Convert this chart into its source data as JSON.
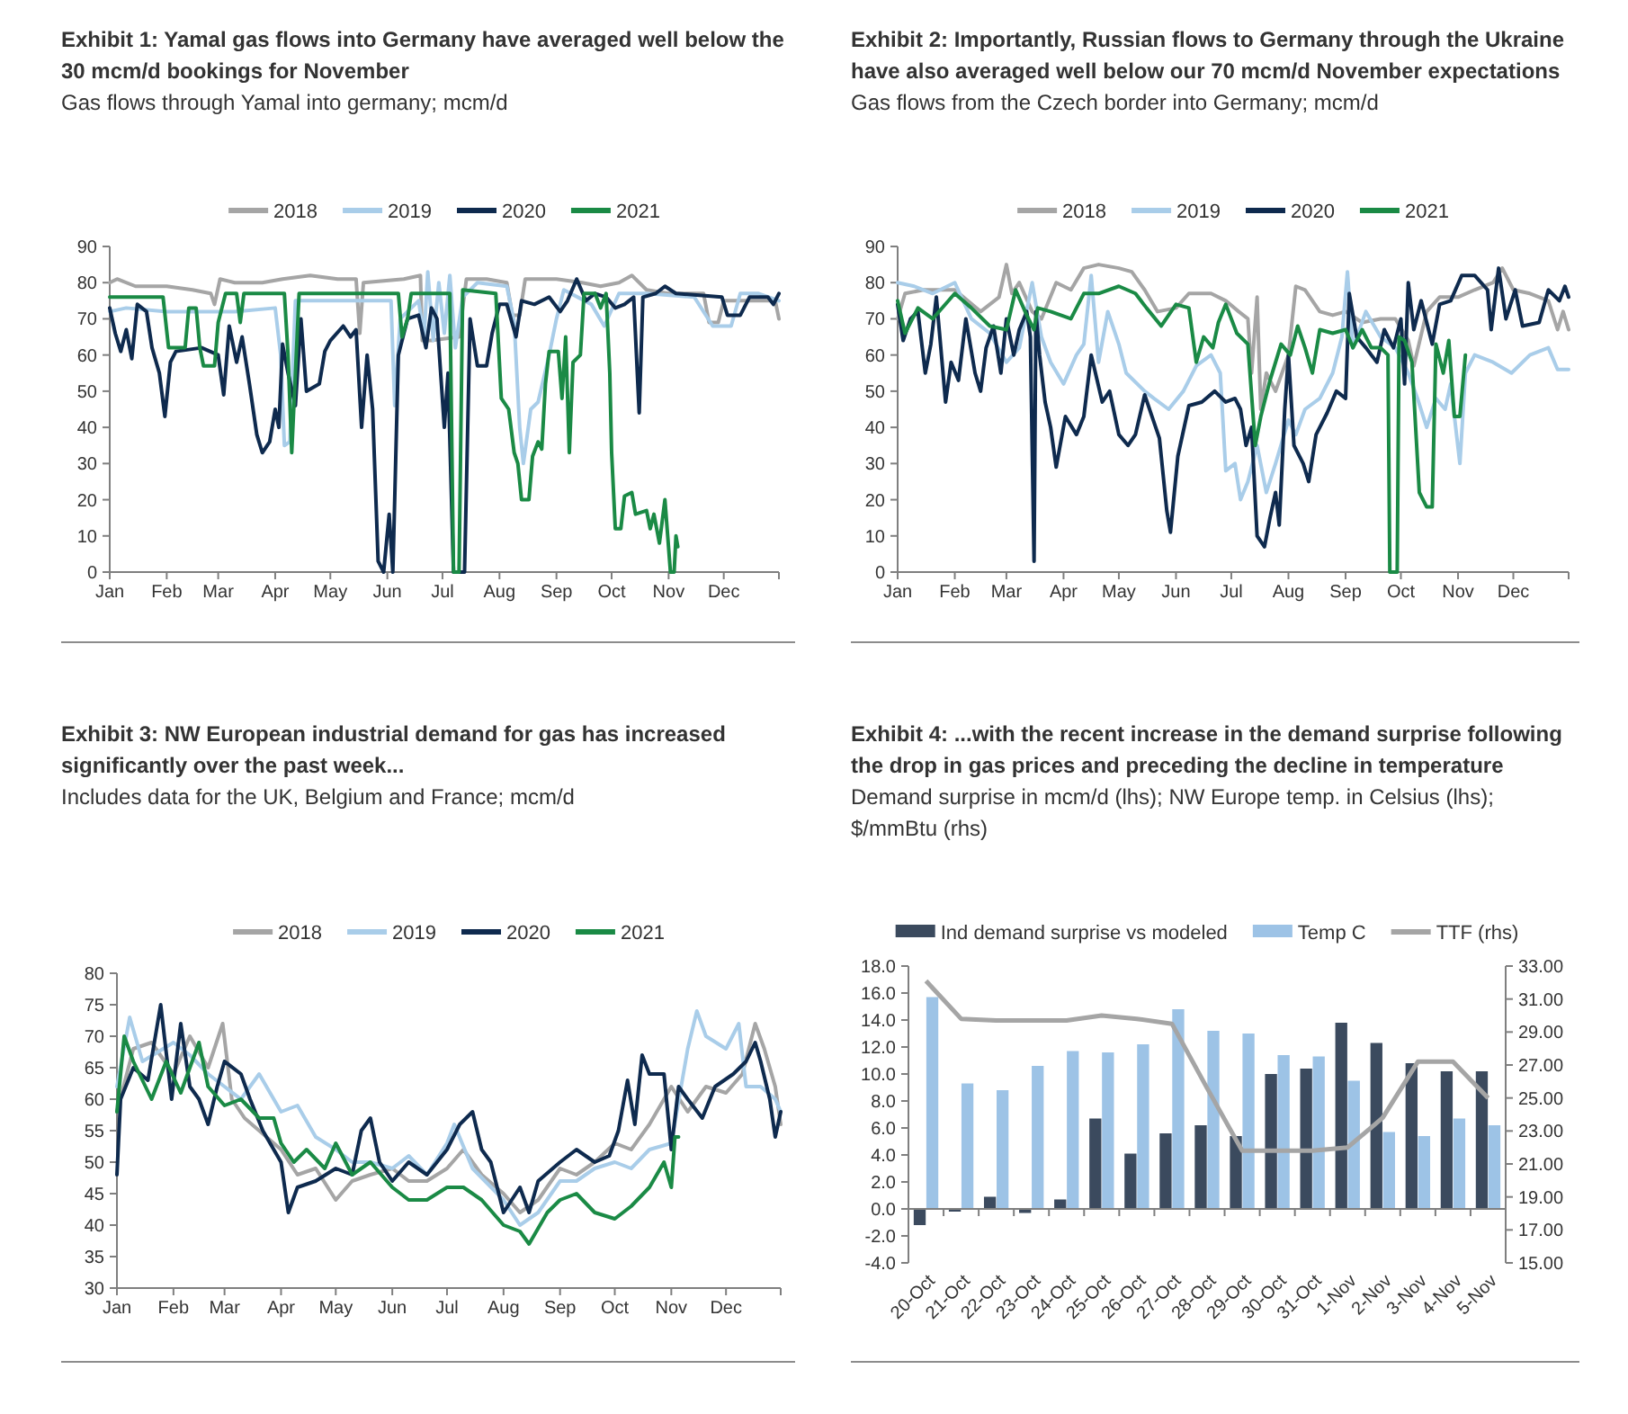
{
  "chart_data": [
    {
      "type": "line",
      "title": "Exhibit 1: Yamal gas flows into Germany have averaged well below the 30 mcm/d bookings for November",
      "subtitle": "Gas flows through Yamal into germany; mcm/d",
      "xlim": [
        "--01-01",
        "--12-31"
      ],
      "xticks": [
        {
          "value": "--01-01",
          "label": "Jan"
        },
        {
          "value": "--02-01",
          "label": "Feb"
        },
        {
          "value": "--03-01",
          "label": "Mar"
        },
        {
          "value": "--04-01",
          "label": "Apr"
        },
        {
          "value": "--05-01",
          "label": "May"
        },
        {
          "value": "--06-01",
          "label": "Jun"
        },
        {
          "value": "--07-01",
          "label": "Jul"
        },
        {
          "value": "--08-01",
          "label": "Aug"
        },
        {
          "value": "--09-01",
          "label": "Sep"
        },
        {
          "value": "--10-01",
          "label": "Oct"
        },
        {
          "value": "--11-01",
          "label": "Nov"
        },
        {
          "value": "--12-01",
          "label": "Dec"
        },
        {
          "value": "--12-31",
          "label": null
        }
      ],
      "ylim": [
        0,
        90
      ],
      "yticks": [
        0,
        10,
        20,
        30,
        40,
        50,
        60,
        70,
        80,
        90
      ],
      "legend": "top",
      "series": [
        {
          "name": "2018",
          "color": "#a5a5a5",
          "x": [
            "--01-01",
            "--01-05",
            "--01-15",
            "--02-01",
            "--02-15",
            "--02-25",
            "--02-27",
            "--03-02",
            "--03-10",
            "--03-25",
            "--04-05",
            "--04-20",
            "--05-05",
            "--05-15",
            "--05-17",
            "--05-19",
            "--06-10",
            "--06-19",
            "--06-20",
            "--06-25",
            "--07-10",
            "--07-14",
            "--07-25",
            "--08-05",
            "--08-08",
            "--08-12",
            "--08-15",
            "--09-01",
            "--09-15",
            "--09-25",
            "--10-05",
            "--10-12",
            "--10-20",
            "--11-01",
            "--11-20",
            "--11-23",
            "--11-28",
            "--12-01",
            "--12-29",
            "--12-31"
          ],
          "values": [
            80,
            81,
            79,
            79,
            78,
            77,
            74,
            81,
            80,
            80,
            81,
            82,
            81,
            81,
            66,
            80,
            81,
            82,
            64,
            64,
            65,
            81,
            81,
            80,
            71,
            71,
            81,
            81,
            80,
            79,
            80,
            82,
            78,
            77,
            77,
            69,
            69,
            75,
            75,
            70
          ]
        },
        {
          "name": "2019",
          "color": "#a9cde9",
          "x": [
            "--01-01",
            "--01-10",
            "--02-01",
            "--02-20",
            "--03-10",
            "--04-01",
            "--04-04",
            "--04-06",
            "--04-09",
            "--04-12",
            "--05-10",
            "--06-03",
            "--06-05",
            "--06-08",
            "--06-18",
            "--06-21",
            "--06-23",
            "--06-26",
            "--06-29",
            "--07-02",
            "--07-05",
            "--07-08",
            "--07-12",
            "--07-20",
            "--08-05",
            "--08-09",
            "--08-12",
            "--08-14",
            "--08-18",
            "--08-22",
            "--08-28",
            "--09-01",
            "--09-05",
            "--09-20",
            "--09-27",
            "--10-05",
            "--10-20",
            "--11-15",
            "--11-25",
            "--12-05",
            "--12-10",
            "--12-20",
            "--12-31"
          ],
          "values": [
            72,
            73,
            72,
            72,
            72,
            73,
            60,
            35,
            36,
            75,
            75,
            75,
            46,
            70,
            75,
            65,
            83,
            64,
            80,
            66,
            82,
            62,
            76,
            80,
            79,
            69,
            40,
            30,
            45,
            47,
            60,
            70,
            78,
            74,
            68,
            77,
            77,
            76,
            68,
            68,
            77,
            77,
            75
          ]
        },
        {
          "name": "2020",
          "color": "#0e2a4e",
          "x": [
            "--01-01",
            "--01-04",
            "--01-07",
            "--01-10",
            "--01-13",
            "--01-16",
            "--01-21",
            "--01-24",
            "--01-28",
            "--01-31",
            "--02-03",
            "--02-06",
            "--02-20",
            "--03-01",
            "--03-04",
            "--03-07",
            "--03-11",
            "--03-14",
            "--03-18",
            "--03-22",
            "--03-25",
            "--03-29",
            "--04-01",
            "--04-03",
            "--04-05",
            "--04-08",
            "--04-12",
            "--04-15",
            "--04-18",
            "--04-25",
            "--04-28",
            "--05-01",
            "--05-08",
            "--05-12",
            "--05-15",
            "--05-18",
            "--05-21",
            "--05-24",
            "--05-27",
            "--05-30",
            "--06-02",
            "--06-04",
            "--06-07",
            "--06-12",
            "--06-18",
            "--06-22",
            "--06-25",
            "--06-28",
            "--07-02",
            "--07-04",
            "--07-07",
            "--07-13",
            "--07-16",
            "--07-20",
            "--07-25",
            "--07-28",
            "--08-01",
            "--08-05",
            "--08-10",
            "--08-13",
            "--08-20",
            "--08-28",
            "--09-03",
            "--09-07",
            "--09-12",
            "--09-17",
            "--09-22",
            "--09-28",
            "--10-03",
            "--10-08",
            "--10-13",
            "--10-16",
            "--10-18",
            "--10-25",
            "--10-30",
            "--11-05",
            "--11-30",
            "--12-03",
            "--12-10",
            "--12-15",
            "--12-25",
            "--12-28",
            "--12-31"
          ],
          "values": [
            73,
            66,
            61,
            67,
            59,
            74,
            72,
            62,
            55,
            43,
            58,
            61,
            62,
            60,
            49,
            68,
            58,
            65,
            52,
            38,
            33,
            36,
            45,
            40,
            63,
            55,
            46,
            70,
            50,
            52,
            61,
            64,
            68,
            65,
            67,
            40,
            60,
            45,
            3,
            0,
            16,
            0,
            60,
            70,
            71,
            62,
            73,
            70,
            40,
            55,
            0,
            0,
            70,
            57,
            57,
            66,
            74,
            74,
            65,
            75,
            74,
            76,
            72,
            75,
            81,
            75,
            77,
            76,
            73,
            74,
            76,
            44,
            76,
            77,
            79,
            77,
            76,
            71,
            71,
            76,
            76,
            74,
            77
          ]
        },
        {
          "name": "2021",
          "color": "#1a8a45",
          "x": [
            "--01-01",
            "--01-30",
            "--02-02",
            "--02-11",
            "--02-13",
            "--02-17",
            "--02-19",
            "--02-21",
            "--02-27",
            "--03-01",
            "--03-05",
            "--03-11",
            "--03-13",
            "--03-15",
            "--04-06",
            "--04-08",
            "--04-10",
            "--04-12",
            "--04-14",
            "--06-07",
            "--06-09",
            "--06-12",
            "--06-14",
            "--07-05",
            "--07-07",
            "--07-10",
            "--07-12",
            "--07-30",
            "--08-02",
            "--08-06",
            "--08-09",
            "--08-11",
            "--08-13",
            "--08-17",
            "--08-19",
            "--08-22",
            "--08-24",
            "--08-26",
            "--08-28",
            "--09-02",
            "--09-04",
            "--09-06",
            "--09-08",
            "--09-10",
            "--09-14",
            "--09-16",
            "--09-22",
            "--09-25",
            "--09-28",
            "--09-30",
            "--10-01",
            "--10-03",
            "--10-06",
            "--10-08",
            "--10-12",
            "--10-14",
            "--10-20",
            "--10-22",
            "--10-24",
            "--10-27",
            "--10-30",
            "--11-02",
            "--11-04",
            "--11-05",
            "--11-06"
          ],
          "values": [
            76,
            76,
            62,
            62,
            73,
            73,
            62,
            57,
            57,
            69,
            77,
            77,
            69,
            77,
            77,
            60,
            33,
            55,
            77,
            77,
            65,
            70,
            77,
            77,
            0,
            0,
            78,
            77,
            48,
            45,
            33,
            30,
            20,
            20,
            32,
            36,
            34,
            52,
            61,
            61,
            48,
            65,
            33,
            58,
            60,
            77,
            77,
            73,
            77,
            55,
            33,
            12,
            12,
            21,
            22,
            16,
            17,
            12,
            16,
            8,
            20,
            0,
            0,
            10,
            7
          ]
        }
      ]
    },
    {
      "type": "line",
      "title": "Exhibit 2: Importantly, Russian flows to Germany through the Ukraine have also averaged well below our 70 mcm/d November expectations",
      "subtitle": "Gas flows from the Czech border into Germany; mcm/d",
      "xlim": [
        "--01-01",
        "--12-31"
      ],
      "xticks": [
        {
          "value": "--01-01",
          "label": "Jan"
        },
        {
          "value": "--02-01",
          "label": "Feb"
        },
        {
          "value": "--03-01",
          "label": "Mar"
        },
        {
          "value": "--04-01",
          "label": "Apr"
        },
        {
          "value": "--05-01",
          "label": "May"
        },
        {
          "value": "--06-01",
          "label": "Jun"
        },
        {
          "value": "--07-01",
          "label": "Jul"
        },
        {
          "value": "--08-01",
          "label": "Aug"
        },
        {
          "value": "--09-01",
          "label": "Sep"
        },
        {
          "value": "--10-01",
          "label": "Oct"
        },
        {
          "value": "--11-01",
          "label": "Nov"
        },
        {
          "value": "--12-01",
          "label": "Dec"
        },
        {
          "value": "--12-31",
          "label": null
        }
      ],
      "ylim": [
        0,
        90
      ],
      "yticks": [
        0,
        10,
        20,
        30,
        40,
        50,
        60,
        70,
        80,
        90
      ],
      "legend": "top",
      "series": [
        {
          "name": "2018",
          "color": "#a5a5a5",
          "x": [
            "--01-01",
            "--01-05",
            "--01-15",
            "--02-01",
            "--02-15",
            "--02-25",
            "--03-01",
            "--03-04",
            "--03-08",
            "--03-15",
            "--03-20",
            "--03-28",
            "--04-05",
            "--04-12",
            "--04-20",
            "--05-01",
            "--05-08",
            "--05-15",
            "--05-22",
            "--06-01",
            "--06-08",
            "--06-20",
            "--06-28",
            "--07-05",
            "--07-10",
            "--07-12",
            "--07-15",
            "--07-17",
            "--07-20",
            "--07-25",
            "--08-01",
            "--08-05",
            "--08-10",
            "--08-18",
            "--08-25",
            "--09-01",
            "--09-10",
            "--09-20",
            "--09-28",
            "--10-05",
            "--10-08",
            "--10-15",
            "--10-22",
            "--11-01",
            "--11-10",
            "--11-20",
            "--11-25",
            "--12-01",
            "--12-10",
            "--12-20",
            "--12-25",
            "--12-28",
            "--12-31"
          ],
          "values": [
            70,
            77,
            78,
            78,
            72,
            76,
            85,
            77,
            80,
            72,
            70,
            80,
            78,
            84,
            85,
            84,
            83,
            78,
            72,
            73,
            77,
            77,
            75,
            72,
            70,
            55,
            76,
            45,
            55,
            50,
            60,
            79,
            78,
            72,
            71,
            72,
            69,
            70,
            70,
            64,
            57,
            72,
            76,
            76,
            78,
            80,
            84,
            78,
            77,
            75,
            67,
            72,
            67
          ]
        },
        {
          "name": "2019",
          "color": "#a9cde9",
          "x": [
            "--01-01",
            "--01-10",
            "--01-20",
            "--02-01",
            "--02-10",
            "--02-20",
            "--03-01",
            "--03-08",
            "--03-15",
            "--03-20",
            "--03-25",
            "--04-01",
            "--04-08",
            "--04-12",
            "--04-16",
            "--04-20",
            "--04-25",
            "--05-01",
            "--05-05",
            "--05-15",
            "--05-20",
            "--05-28",
            "--06-05",
            "--06-12",
            "--06-20",
            "--06-25",
            "--06-28",
            "--07-03",
            "--07-06",
            "--07-10",
            "--07-15",
            "--07-20",
            "--07-25",
            "--08-01",
            "--08-05",
            "--08-10",
            "--08-18",
            "--08-25",
            "--08-30",
            "--09-02",
            "--09-05",
            "--09-12",
            "--09-20",
            "--09-28",
            "--10-05",
            "--10-10",
            "--10-15",
            "--10-20",
            "--10-25",
            "--10-28",
            "--11-02",
            "--11-05",
            "--11-10",
            "--11-20",
            "--11-30",
            "--12-10",
            "--12-20",
            "--12-25",
            "--12-31"
          ],
          "values": [
            80,
            79,
            77,
            80,
            70,
            66,
            58,
            62,
            80,
            65,
            58,
            52,
            60,
            63,
            82,
            58,
            72,
            63,
            55,
            50,
            48,
            45,
            50,
            57,
            60,
            55,
            28,
            30,
            20,
            25,
            35,
            22,
            30,
            42,
            38,
            45,
            48,
            55,
            65,
            83,
            62,
            72,
            65,
            62,
            55,
            48,
            40,
            48,
            45,
            52,
            30,
            55,
            60,
            58,
            55,
            60,
            62,
            56,
            56
          ]
        },
        {
          "name": "2020",
          "color": "#0e2a4e",
          "x": [
            "--01-01",
            "--01-04",
            "--01-08",
            "--01-12",
            "--01-16",
            "--01-19",
            "--01-22",
            "--01-27",
            "--01-30",
            "--02-03",
            "--02-07",
            "--02-12",
            "--02-15",
            "--02-18",
            "--02-22",
            "--02-26",
            "--03-01",
            "--03-05",
            "--03-08",
            "--03-12",
            "--03-14",
            "--03-16",
            "--03-17",
            "--03-19",
            "--03-22",
            "--03-25",
            "--03-28",
            "--04-02",
            "--04-08",
            "--04-12",
            "--04-16",
            "--04-22",
            "--04-26",
            "--05-01",
            "--05-06",
            "--05-10",
            "--05-15",
            "--05-19",
            "--05-23",
            "--05-27",
            "--05-29",
            "--06-02",
            "--06-08",
            "--06-15",
            "--06-22",
            "--06-28",
            "--07-03",
            "--07-06",
            "--07-09",
            "--07-12",
            "--07-15",
            "--07-19",
            "--07-22",
            "--07-25",
            "--07-27",
            "--07-30",
            "--08-01",
            "--08-04",
            "--08-09",
            "--08-12",
            "--08-16",
            "--08-22",
            "--08-27",
            "--09-01",
            "--09-03",
            "--09-07",
            "--09-12",
            "--09-18",
            "--09-22",
            "--09-27",
            "--10-01",
            "--10-03",
            "--10-05",
            "--10-08",
            "--10-12",
            "--10-18",
            "--10-22",
            "--10-28",
            "--11-03",
            "--11-10",
            "--11-17",
            "--11-19",
            "--11-23",
            "--11-27",
            "--12-02",
            "--12-06",
            "--12-15",
            "--12-20",
            "--12-26",
            "--12-29",
            "--12-31"
          ],
          "values": [
            74,
            64,
            70,
            72,
            55,
            63,
            76,
            47,
            58,
            53,
            70,
            55,
            50,
            62,
            68,
            55,
            70,
            60,
            67,
            72,
            65,
            3,
            72,
            60,
            47,
            40,
            29,
            43,
            38,
            43,
            60,
            47,
            50,
            38,
            35,
            38,
            49,
            43,
            37,
            17,
            11,
            32,
            46,
            47,
            50,
            47,
            48,
            45,
            35,
            40,
            10,
            7,
            15,
            22,
            13,
            45,
            60,
            35,
            30,
            25,
            38,
            44,
            50,
            48,
            77,
            65,
            62,
            58,
            67,
            62,
            70,
            52,
            80,
            67,
            75,
            63,
            74,
            75,
            82,
            82,
            78,
            67,
            84,
            70,
            78,
            68,
            69,
            78,
            75,
            79,
            76
          ]
        },
        {
          "name": "2021",
          "color": "#1a8a45",
          "x": [
            "--01-01",
            "--01-05",
            "--01-12",
            "--01-20",
            "--02-01",
            "--02-10",
            "--02-20",
            "--03-01",
            "--03-06",
            "--03-12",
            "--03-16",
            "--03-18",
            "--03-25",
            "--04-05",
            "--04-12",
            "--04-20",
            "--05-01",
            "--05-10",
            "--05-16",
            "--05-24",
            "--06-01",
            "--06-08",
            "--06-12",
            "--06-16",
            "--06-21",
            "--06-24",
            "--06-28",
            "--07-04",
            "--07-10",
            "--07-14",
            "--07-17",
            "--07-22",
            "--07-28",
            "--08-02",
            "--08-06",
            "--08-10",
            "--08-14",
            "--08-18",
            "--08-25",
            "--09-01",
            "--09-05",
            "--09-10",
            "--09-15",
            "--09-20",
            "--09-24",
            "--09-25",
            "--09-29",
            "--09-30",
            "--10-03",
            "--10-07",
            "--10-09",
            "--10-11",
            "--10-15",
            "--10-18",
            "--10-20",
            "--10-24",
            "--10-27",
            "--10-30",
            "--11-02",
            "--11-05"
          ],
          "values": [
            75,
            66,
            73,
            70,
            77,
            73,
            68,
            67,
            78,
            71,
            67,
            73,
            72,
            70,
            77,
            77,
            79,
            77,
            73,
            68,
            74,
            73,
            58,
            65,
            62,
            69,
            74,
            66,
            63,
            35,
            43,
            53,
            63,
            60,
            68,
            62,
            55,
            67,
            66,
            67,
            62,
            67,
            62,
            62,
            60,
            0,
            0,
            65,
            64,
            58,
            40,
            22,
            18,
            18,
            63,
            55,
            64,
            43,
            43,
            60
          ]
        }
      ]
    },
    {
      "type": "line",
      "title": "Exhibit 3: NW European industrial demand for gas has increased significantly over the past week...",
      "subtitle": "Includes data for the UK, Belgium and France; mcm/d",
      "xlim": [
        "--01-01",
        "--12-31"
      ],
      "xticks": [
        {
          "value": "--01-01",
          "label": "Jan"
        },
        {
          "value": "--02-01",
          "label": "Feb"
        },
        {
          "value": "--03-01",
          "label": "Mar"
        },
        {
          "value": "--04-01",
          "label": "Apr"
        },
        {
          "value": "--05-01",
          "label": "May"
        },
        {
          "value": "--06-01",
          "label": "Jun"
        },
        {
          "value": "--07-01",
          "label": "Jul"
        },
        {
          "value": "--08-01",
          "label": "Aug"
        },
        {
          "value": "--09-01",
          "label": "Sep"
        },
        {
          "value": "--10-01",
          "label": "Oct"
        },
        {
          "value": "--11-01",
          "label": "Nov"
        },
        {
          "value": "--12-01",
          "label": "Dec"
        },
        {
          "value": "--12-31",
          "label": null
        }
      ],
      "ylim": [
        30,
        80
      ],
      "yticks": [
        30,
        35,
        40,
        45,
        50,
        55,
        60,
        65,
        70,
        75,
        80
      ],
      "legend": "top",
      "series": [
        {
          "name": "2018",
          "color": "#a5a5a5",
          "x": [
            "--01-01",
            "--01-10",
            "--01-20",
            "--02-01",
            "--02-10",
            "--02-20",
            "--02-28",
            "--03-05",
            "--03-12",
            "--03-20",
            "--04-01",
            "--04-10",
            "--04-20",
            "--05-01",
            "--05-10",
            "--05-20",
            "--06-01",
            "--06-10",
            "--06-20",
            "--07-01",
            "--07-10",
            "--07-20",
            "--08-01",
            "--08-10",
            "--08-20",
            "--09-01",
            "--09-10",
            "--09-20",
            "--10-01",
            "--10-10",
            "--10-20",
            "--11-01",
            "--11-10",
            "--11-20",
            "--12-01",
            "--12-10",
            "--12-17",
            "--12-22",
            "--12-28",
            "--12-31"
          ],
          "values": [
            58,
            68,
            69,
            64,
            70,
            65,
            72,
            60,
            57,
            55,
            52,
            48,
            49,
            44,
            47,
            48,
            49,
            47,
            47,
            49,
            52,
            48,
            45,
            42,
            44,
            49,
            48,
            50,
            53,
            52,
            56,
            62,
            58,
            62,
            61,
            64,
            72,
            68,
            62,
            56
          ]
        },
        {
          "name": "2019",
          "color": "#a9cde9",
          "x": [
            "--01-01",
            "--01-08",
            "--01-15",
            "--02-01",
            "--02-10",
            "--02-20",
            "--03-01",
            "--03-10",
            "--03-20",
            "--04-01",
            "--04-10",
            "--04-20",
            "--05-01",
            "--05-10",
            "--05-20",
            "--06-01",
            "--06-10",
            "--06-20",
            "--07-01",
            "--07-05",
            "--07-15",
            "--08-01",
            "--08-10",
            "--08-20",
            "--09-01",
            "--09-10",
            "--09-20",
            "--10-01",
            "--10-10",
            "--10-20",
            "--11-01",
            "--11-10",
            "--11-15",
            "--11-20",
            "--12-01",
            "--12-08",
            "--12-12",
            "--12-20",
            "--12-28",
            "--12-31"
          ],
          "values": [
            62,
            73,
            66,
            69,
            67,
            64,
            62,
            60,
            64,
            58,
            59,
            54,
            52,
            50,
            50,
            49,
            51,
            48,
            53,
            56,
            49,
            44,
            40,
            42,
            47,
            47,
            49,
            50,
            49,
            52,
            53,
            68,
            74,
            70,
            68,
            72,
            62,
            62,
            60,
            58
          ]
        },
        {
          "name": "2020",
          "color": "#0e2a4e",
          "x": [
            "--01-01",
            "--01-03",
            "--01-10",
            "--01-18",
            "--01-25",
            "--01-31",
            "--02-05",
            "--02-10",
            "--02-15",
            "--02-20",
            "--02-25",
            "--03-01",
            "--03-10",
            "--03-15",
            "--03-22",
            "--04-01",
            "--04-05",
            "--04-10",
            "--04-20",
            "--05-01",
            "--05-10",
            "--05-15",
            "--05-20",
            "--05-25",
            "--06-01",
            "--06-10",
            "--06-20",
            "--07-01",
            "--07-08",
            "--07-15",
            "--07-20",
            "--07-25",
            "--08-01",
            "--08-10",
            "--08-15",
            "--08-20",
            "--09-01",
            "--09-10",
            "--09-20",
            "--09-28",
            "--10-03",
            "--10-08",
            "--10-12",
            "--10-16",
            "--10-20",
            "--10-28",
            "--11-01",
            "--11-05",
            "--11-10",
            "--11-18",
            "--11-25",
            "--12-05",
            "--12-12",
            "--12-17",
            "--12-20",
            "--12-25",
            "--12-28",
            "--12-31"
          ],
          "values": [
            48,
            60,
            65,
            63,
            75,
            60,
            72,
            62,
            60,
            56,
            62,
            66,
            64,
            60,
            55,
            50,
            42,
            46,
            47,
            49,
            48,
            55,
            57,
            50,
            47,
            50,
            48,
            52,
            56,
            58,
            52,
            50,
            42,
            46,
            42,
            47,
            50,
            52,
            50,
            51,
            55,
            63,
            56,
            67,
            64,
            64,
            52,
            62,
            60,
            57,
            62,
            64,
            66,
            69,
            66,
            60,
            54,
            58
          ]
        },
        {
          "name": "2021",
          "color": "#1a8a45",
          "x": [
            "--01-01",
            "--01-05",
            "--01-10",
            "--01-20",
            "--01-28",
            "--02-05",
            "--02-15",
            "--02-20",
            "--03-01",
            "--03-10",
            "--03-20",
            "--03-28",
            "--04-01",
            "--04-08",
            "--04-15",
            "--04-25",
            "--05-01",
            "--05-10",
            "--05-20",
            "--06-01",
            "--06-10",
            "--06-20",
            "--07-01",
            "--07-10",
            "--07-20",
            "--08-01",
            "--08-10",
            "--08-15",
            "--08-25",
            "--09-01",
            "--09-10",
            "--09-20",
            "--10-01",
            "--10-10",
            "--10-20",
            "--10-28",
            "--11-01",
            "--11-03",
            "--11-05"
          ],
          "values": [
            58,
            70,
            66,
            60,
            66,
            61,
            69,
            62,
            59,
            60,
            57,
            57,
            53,
            50,
            52,
            49,
            53,
            48,
            50,
            46,
            44,
            44,
            46,
            46,
            44,
            40,
            39,
            37,
            42,
            44,
            45,
            42,
            41,
            43,
            46,
            50,
            46,
            54,
            54
          ]
        }
      ]
    },
    {
      "type": "bar",
      "title": "Exhibit 4: ...with the recent increase in the demand surprise following the drop in gas prices and preceding the decline in temperature",
      "subtitle": "Demand surprise in mcm/d (lhs); NW Europe temp. in Celsius (lhs); $/mmBtu (rhs)",
      "categories": [
        "20-Oct",
        "21-Oct",
        "22-Oct",
        "23-Oct",
        "24-Oct",
        "25-Oct",
        "26-Oct",
        "27-Oct",
        "28-Oct",
        "29-Oct",
        "30-Oct",
        "31-Oct",
        "1-Nov",
        "2-Nov",
        "3-Nov",
        "4-Nov",
        "5-Nov"
      ],
      "ylim": [
        -4,
        18
      ],
      "yticks": [
        {
          "value": -4,
          "label": "-4.0"
        },
        {
          "value": -2,
          "label": "-2.0"
        },
        {
          "value": 0,
          "label": "0.0"
        },
        {
          "value": 2,
          "label": "2.0"
        },
        {
          "value": 4,
          "label": "4.0"
        },
        {
          "value": 6,
          "label": "6.0"
        },
        {
          "value": 8,
          "label": "8.0"
        },
        {
          "value": 10,
          "label": "10.0"
        },
        {
          "value": 12,
          "label": "12.0"
        },
        {
          "value": 14,
          "label": "14.0"
        },
        {
          "value": 16,
          "label": "16.0"
        },
        {
          "value": 18,
          "label": "18.0"
        }
      ],
      "y2lim": [
        15,
        33
      ],
      "y2ticks": [
        {
          "value": 15,
          "label": "15.00"
        },
        {
          "value": 17,
          "label": "17.00"
        },
        {
          "value": 19,
          "label": "19.00"
        },
        {
          "value": 21,
          "label": "21.00"
        },
        {
          "value": 23,
          "label": "23.00"
        },
        {
          "value": 25,
          "label": "25.00"
        },
        {
          "value": 27,
          "label": "27.00"
        },
        {
          "value": 29,
          "label": "29.00"
        },
        {
          "value": 31,
          "label": "31.00"
        },
        {
          "value": 33,
          "label": "33.00"
        }
      ],
      "legend": "top",
      "series": [
        {
          "name": "Ind demand surprise vs modeled",
          "type": "bar",
          "color": "#3b4a5e",
          "values": [
            -1.2,
            -0.2,
            0.9,
            -0.3,
            0.7,
            6.7,
            4.1,
            5.6,
            6.2,
            5.4,
            10,
            10.4,
            13.8,
            12.3,
            10.8,
            10.2,
            10.2
          ]
        },
        {
          "name": "Temp C",
          "type": "bar",
          "color": "#9dc3e6",
          "values": [
            15.7,
            9.3,
            8.8,
            10.6,
            11.7,
            11.6,
            12.2,
            14.8,
            13.2,
            13,
            11.4,
            11.3,
            9.5,
            5.7,
            5.4,
            6.7,
            6.2
          ]
        },
        {
          "name": "TTF (rhs)",
          "type": "line",
          "axis": "y2",
          "color": "#a5a5a5",
          "values": [
            32.1,
            29.8,
            29.7,
            29.7,
            29.7,
            30,
            29.8,
            29.5,
            25.6,
            21.8,
            21.8,
            21.8,
            22,
            23.8,
            27.2,
            27.2,
            25
          ]
        }
      ]
    }
  ]
}
